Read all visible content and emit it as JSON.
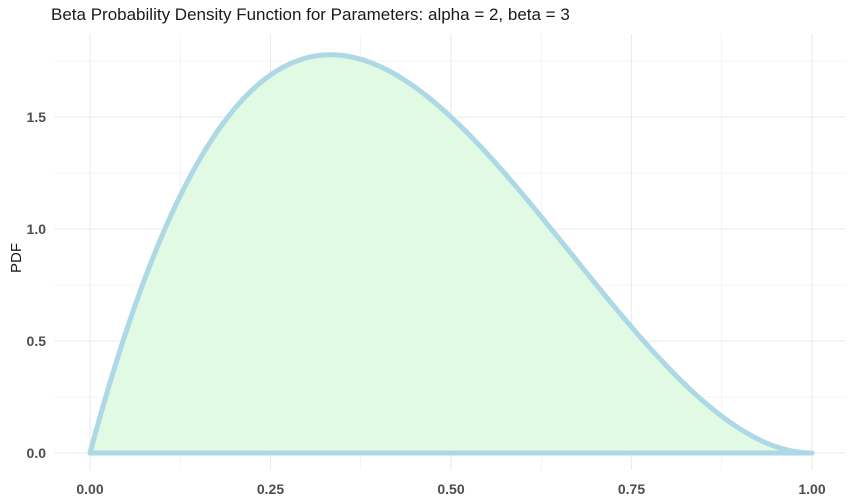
{
  "chart_data": {
    "type": "area",
    "title": "Beta Probability Density Function for Parameters: alpha = 2, beta = 3",
    "xlabel": "",
    "ylabel": "PDF",
    "xlim": [
      0,
      1
    ],
    "ylim": [
      0,
      1.78
    ],
    "x_ticks": [
      0,
      0.25,
      0.5,
      0.75,
      1
    ],
    "x_tick_labels": [
      "0.00",
      "0.25",
      "0.50",
      "0.75",
      "1.00"
    ],
    "y_ticks": [
      0,
      0.5,
      1,
      1.5
    ],
    "y_tick_labels": [
      "0.0",
      "0.5",
      "1.0",
      "1.5"
    ],
    "grid": true,
    "series": [
      {
        "x": [
          0,
          0.025,
          0.05,
          0.075,
          0.1,
          0.125,
          0.15,
          0.175,
          0.2,
          0.225,
          0.25,
          0.275,
          0.3,
          0.325,
          0.35,
          0.375,
          0.4,
          0.425,
          0.45,
          0.475,
          0.5,
          0.525,
          0.55,
          0.575,
          0.6,
          0.625,
          0.65,
          0.675,
          0.7,
          0.725,
          0.75,
          0.775,
          0.8,
          0.825,
          0.85,
          0.875,
          0.9,
          0.925,
          0.95,
          0.975,
          1
        ],
        "y": [
          0,
          0.285,
          0.5415,
          0.7702,
          0.972,
          1.1484,
          1.3005,
          1.4294,
          1.536,
          1.6215,
          1.6875,
          1.7347,
          1.764,
          1.7765,
          1.7745,
          1.7578,
          1.728,
          1.686,
          1.6335,
          1.5717,
          1.5,
          1.4197,
          1.3365,
          1.2489,
          1.152,
          1.0547,
          0.9555,
          0.8556,
          0.756,
          0.6578,
          0.5625,
          0.4713,
          0.384,
          0.3028,
          0.2295,
          0.1641,
          0.108,
          0.0624,
          0.0285,
          0.0073,
          0
        ]
      }
    ],
    "colors": {
      "line": "#add8e6",
      "fill": "#e0fae3",
      "grid": "#ebebeb"
    }
  }
}
